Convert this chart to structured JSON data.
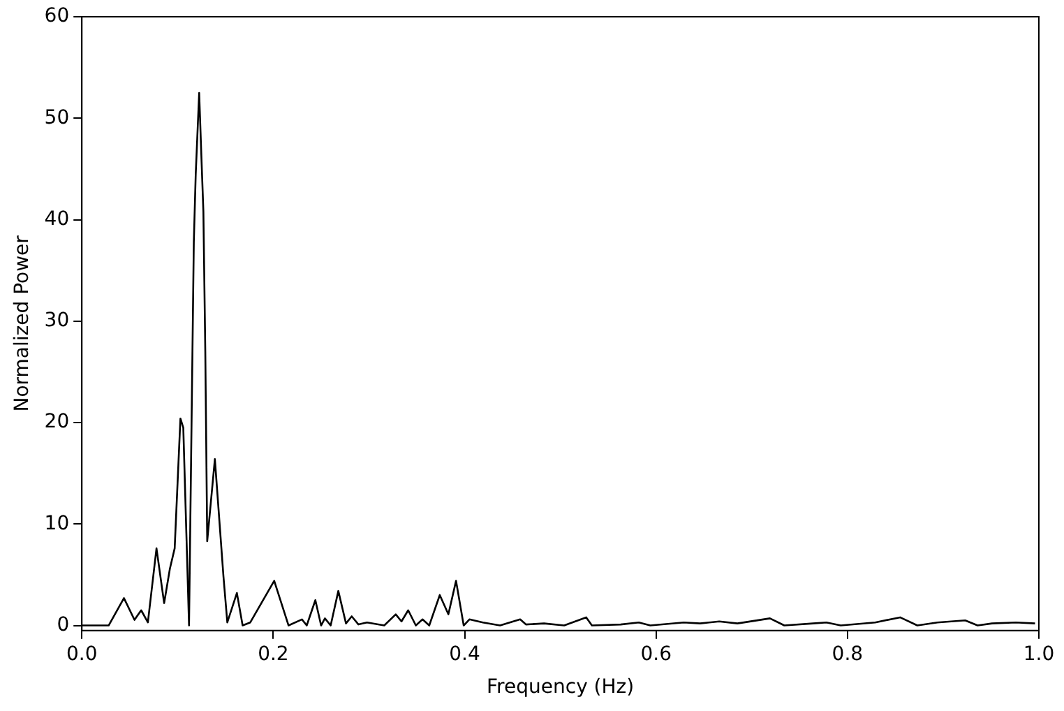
{
  "chart_data": {
    "type": "line",
    "xlabel": "Frequency (Hz)",
    "ylabel": "Normalized Power",
    "x": [
      0,
      0.028,
      0.044,
      0.055,
      0.062,
      0.069,
      0.078,
      0.086,
      0.092,
      0.097,
      0.103,
      0.106,
      0.112,
      0.117,
      0.119,
      0.1226,
      0.125,
      0.127,
      0.129,
      0.131,
      0.139,
      0.148,
      0.152,
      0.162,
      0.168,
      0.176,
      0.201,
      0.216,
      0.23,
      0.235,
      0.244,
      0.25,
      0.254,
      0.26,
      0.268,
      0.276,
      0.282,
      0.289,
      0.298,
      0.316,
      0.328,
      0.334,
      0.341,
      0.349,
      0.356,
      0.363,
      0.374,
      0.383,
      0.391,
      0.399,
      0.405,
      0.419,
      0.437,
      0.458,
      0.464,
      0.483,
      0.504,
      0.527,
      0.533,
      0.563,
      0.582,
      0.594,
      0.629,
      0.646,
      0.666,
      0.685,
      0.719,
      0.734,
      0.764,
      0.778,
      0.793,
      0.829,
      0.855,
      0.873,
      0.894,
      0.923,
      0.936,
      0.951,
      0.976,
      0.996
    ],
    "values": [
      0,
      0,
      2.7,
      0.55,
      1.5,
      0.3,
      7.6,
      2.2,
      5.6,
      7.6,
      20.4,
      19.5,
      0,
      37.8,
      44.5,
      52.5,
      46,
      40.8,
      27,
      8.3,
      16.4,
      4.8,
      0.3,
      3.2,
      0,
      0.3,
      4.4,
      0,
      0.6,
      0,
      2.5,
      0,
      0.7,
      0,
      3.4,
      0.2,
      0.9,
      0.1,
      0.3,
      0,
      1.1,
      0.4,
      1.5,
      0,
      0.6,
      0,
      3,
      1.1,
      4.4,
      0,
      0.6,
      0.3,
      0,
      0.6,
      0.1,
      0.2,
      0,
      0.8,
      0,
      0.1,
      0.3,
      0,
      0.3,
      0.2,
      0.4,
      0.2,
      0.7,
      0,
      0.2,
      0.3,
      0,
      0.3,
      0.8,
      0,
      0.3,
      0.5,
      0,
      0.2,
      0.3,
      0.2
    ],
    "color": "#000000",
    "marker": "none",
    "line_style": "solid",
    "grid": false,
    "legend": false,
    "xlim": [
      0,
      1
    ],
    "xticks": [
      {
        "value": 0,
        "label": "0.0"
      },
      0.2,
      0.4,
      0.6,
      0.8,
      {
        "value": 1,
        "label": "1.0"
      }
    ],
    "ylim": [
      -0.5,
      60
    ],
    "yticks": [
      0,
      10,
      20,
      30,
      40,
      50,
      60
    ]
  }
}
